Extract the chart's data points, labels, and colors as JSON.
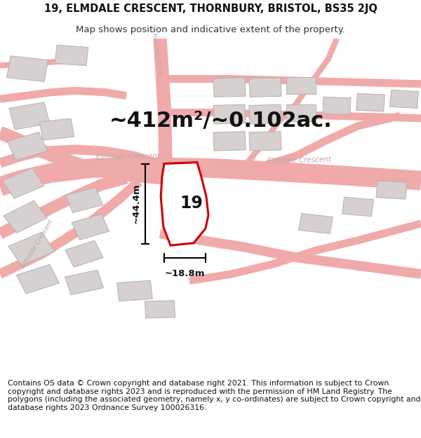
{
  "title_line1": "19, ELMDALE CRESCENT, THORNBURY, BRISTOL, BS35 2JQ",
  "title_line2": "Map shows position and indicative extent of the property.",
  "area_text": "~412m²/~0.102ac.",
  "property_number": "19",
  "width_label": "~18.8m",
  "height_label": "~44.4m",
  "footer_text": "Contains OS data © Crown copyright and database right 2021. This information is subject to Crown copyright and database rights 2023 and is reproduced with the permission of HM Land Registry. The polygons (including the associated geometry, namely x, y co-ordinates) are subject to Crown copyright and database rights 2023 Ordnance Survey 100026316.",
  "map_bg_color": "#f7f4f4",
  "road_color": "#f0aaaa",
  "building_color": "#d6d0d0",
  "building_edge_color": "#b8b0b0",
  "property_color": "#ffffff",
  "property_edge_color": "#cc0000",
  "street_label_color": "#c0a8a8",
  "title_fontsize": 10.5,
  "subtitle_fontsize": 9.5,
  "area_fontsize": 22,
  "footer_fontsize": 7.8
}
